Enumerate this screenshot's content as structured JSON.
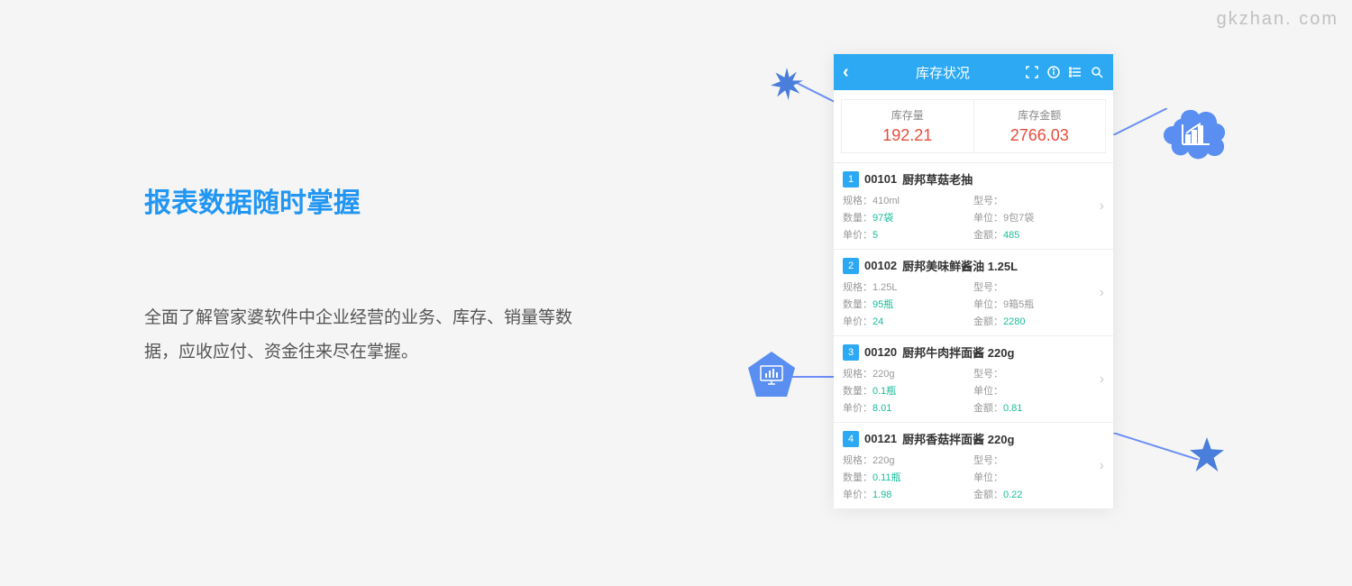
{
  "watermark": "gkzhan. com",
  "left": {
    "title": "报表数据随时掌握",
    "desc": "全面了解管家婆软件中企业经营的业务、库存、销量等数据，应收应付、资金往来尽在掌握。"
  },
  "phone": {
    "header_title": "库存状况",
    "stats": [
      {
        "label": "库存量",
        "value": "192.21"
      },
      {
        "label": "库存金额",
        "value": "2766.03"
      }
    ],
    "items": [
      {
        "num": "1",
        "code": "00101",
        "name": "厨邦草菇老抽",
        "spec": "410ml",
        "model": "",
        "qty": "97袋",
        "unit": "9包7袋",
        "price": "5",
        "amount": "485"
      },
      {
        "num": "2",
        "code": "00102",
        "name": "厨邦美味鲜酱油 1.25L",
        "spec": "1.25L",
        "model": "",
        "qty": "95瓶",
        "unit": "9箱5瓶",
        "price": "24",
        "amount": "2280"
      },
      {
        "num": "3",
        "code": "00120",
        "name": "厨邦牛肉拌面酱 220g",
        "spec": "220g",
        "model": "",
        "qty": "0.1瓶",
        "unit": "",
        "price": "8.01",
        "amount": "0.81"
      },
      {
        "num": "4",
        "code": "00121",
        "name": "厨邦香菇拌面酱 220g",
        "spec": "220g",
        "model": "",
        "qty": "0.11瓶",
        "unit": "",
        "price": "1.98",
        "amount": "0.22"
      }
    ],
    "labels": {
      "spec": "规格：",
      "model": "型号：",
      "qty": "数量：",
      "unit": "单位：",
      "price": "单价：",
      "amount": "金额："
    }
  },
  "colors": {
    "accent_blue": "#2ca9f2",
    "title_blue": "#2196f3",
    "decor_blue": "#4a7edb",
    "line_blue": "#6c8ef5",
    "value_red": "#e74c3c",
    "value_teal": "#1abc9c"
  }
}
